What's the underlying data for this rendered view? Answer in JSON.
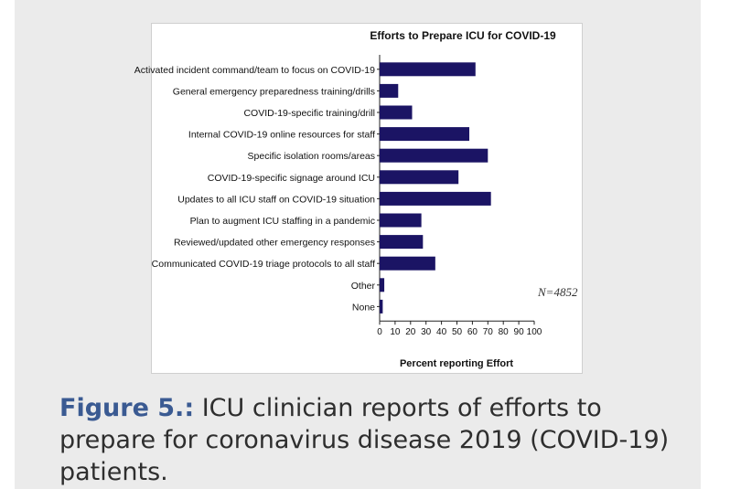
{
  "chart_data": {
    "type": "bar",
    "orientation": "horizontal",
    "title": "Efforts to Prepare ICU for COVID-19",
    "xlabel": "Percent reporting Effort",
    "ylabel": "",
    "xlim": [
      0,
      100
    ],
    "xticks": [
      0,
      10,
      20,
      30,
      40,
      50,
      60,
      70,
      80,
      90,
      100
    ],
    "categories": [
      "Activated incident command/team to focus on COVID-19",
      "General emergency preparedness training/drills",
      "COVID-19-specific training/drill",
      "Internal COVID-19 online resources for staff",
      "Specific isolation rooms/areas",
      "COVID-19-specific signage around ICU",
      "Updates to all ICU staff on COVID-19 situation",
      "Plan to augment ICU staffing in a pandemic",
      "Reviewed/updated other emergency responses",
      "Communicated COVID-19 triage protocols to all staff",
      "Other",
      "None"
    ],
    "values": [
      62,
      12,
      21,
      58,
      70,
      51,
      72,
      27,
      28,
      36,
      3,
      2
    ],
    "bar_color": "#1b1464",
    "annotation": "N=4852",
    "grid": false,
    "legend": "none"
  },
  "caption": {
    "label": "Figure 5.:",
    "text": " ICU clinician reports of efforts to prepare for coronavirus disease 2019 (COVID-19) patients."
  }
}
